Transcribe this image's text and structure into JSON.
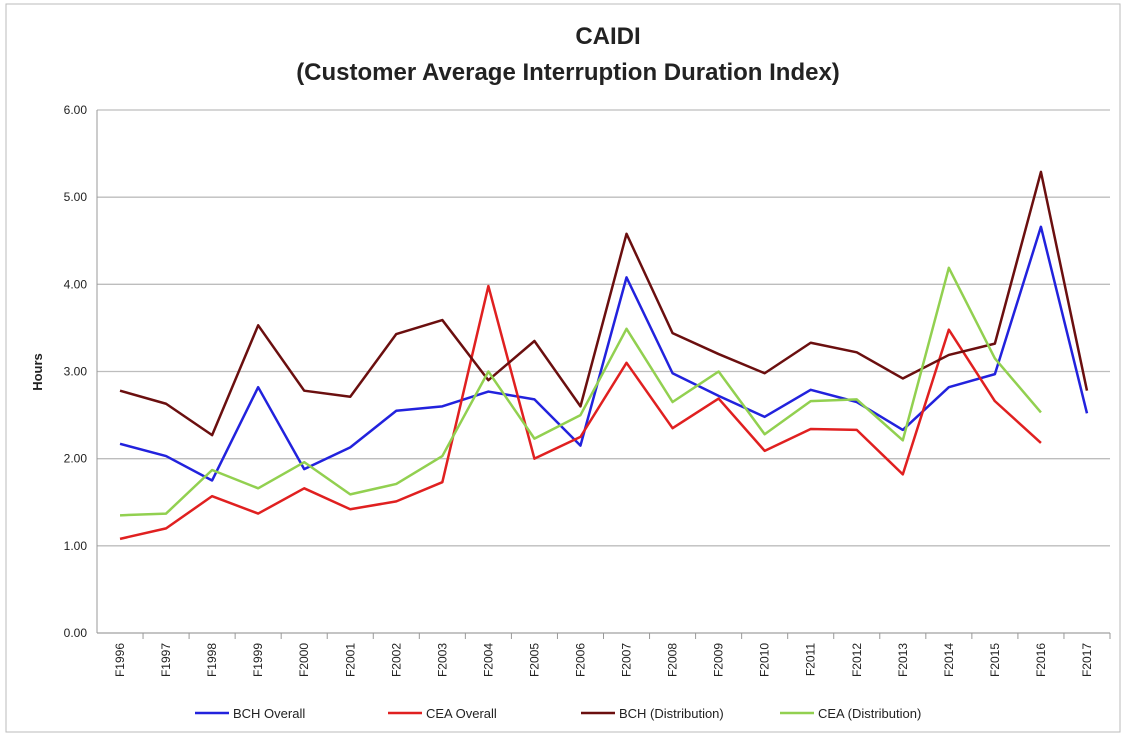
{
  "chart_data": {
    "type": "line",
    "title": "CAIDI",
    "subtitle": "(Customer Average Interruption Duration Index)",
    "y_label": "Hours",
    "categories": [
      "F1996",
      "F1997",
      "F1998",
      "F1999",
      "F2000",
      "F2001",
      "F2002",
      "F2003",
      "F2004",
      "F2005",
      "F2006",
      "F2007",
      "F2008",
      "F2009",
      "F2010",
      "F2011",
      "F2012",
      "F2013",
      "F2014",
      "F2015",
      "F2016",
      "F2017"
    ],
    "series": [
      {
        "name": "BCH Overall",
        "color": "#2222dd",
        "values": [
          2.17,
          2.03,
          1.75,
          2.82,
          1.88,
          2.13,
          2.55,
          2.6,
          2.77,
          2.68,
          2.15,
          4.08,
          2.98,
          2.72,
          2.48,
          2.79,
          2.65,
          2.33,
          2.82,
          2.97,
          4.66,
          2.52
        ]
      },
      {
        "name": "CEA Overall",
        "color": "#e02020",
        "values": [
          1.08,
          1.2,
          1.57,
          1.37,
          1.66,
          1.42,
          1.51,
          1.73,
          3.98,
          2.0,
          2.25,
          3.1,
          2.35,
          2.69,
          2.09,
          2.34,
          2.33,
          1.82,
          3.48,
          2.66,
          2.18,
          null
        ]
      },
      {
        "name": "BCH (Distribution)",
        "color": "#6b0f0f",
        "values": [
          2.78,
          2.63,
          2.27,
          3.53,
          2.78,
          2.71,
          3.43,
          3.59,
          2.9,
          3.35,
          2.6,
          4.58,
          3.44,
          3.2,
          2.98,
          3.33,
          3.22,
          2.92,
          3.19,
          3.32,
          5.29,
          2.78
        ]
      },
      {
        "name": "CEA (Distribution)",
        "color": "#92d050",
        "values": [
          1.35,
          1.37,
          1.87,
          1.66,
          1.96,
          1.59,
          1.71,
          2.03,
          3.0,
          2.23,
          2.5,
          3.49,
          2.65,
          3.0,
          2.28,
          2.66,
          2.68,
          2.21,
          4.19,
          3.15,
          2.53,
          null
        ]
      }
    ],
    "ylim": [
      0,
      6
    ],
    "yticks": [
      {
        "value": 0,
        "label": "0.00"
      },
      {
        "value": 1,
        "label": "1.00"
      },
      {
        "value": 2,
        "label": "2.00"
      },
      {
        "value": 3,
        "label": "3.00"
      },
      {
        "value": 4,
        "label": "4.00"
      },
      {
        "value": 5,
        "label": "5.00"
      },
      {
        "value": 6,
        "label": "6.00"
      }
    ],
    "grid": true,
    "legend": "bottom"
  }
}
